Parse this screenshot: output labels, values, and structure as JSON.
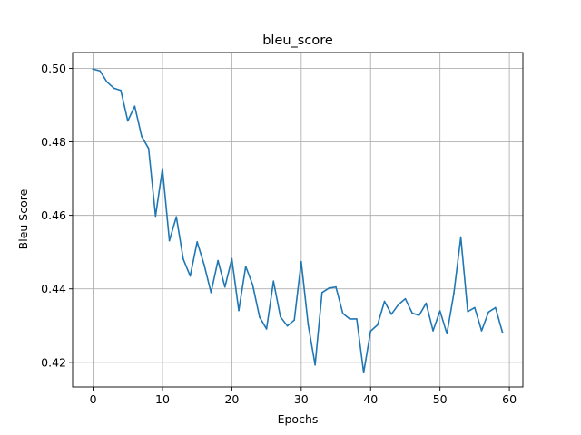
{
  "chart_data": {
    "type": "line",
    "title": "bleu_score",
    "xlabel": "Epochs",
    "ylabel": "Bleu Score",
    "xlim": [
      -2.95,
      61.95
    ],
    "ylim": [
      0.4133,
      0.5043
    ],
    "xticks": [
      0,
      10,
      20,
      30,
      40,
      50,
      60
    ],
    "xtick_labels": [
      "0",
      "10",
      "20",
      "30",
      "40",
      "50",
      "60"
    ],
    "yticks": [
      0.42,
      0.44,
      0.46,
      0.48,
      0.5
    ],
    "ytick_labels": [
      "0.42",
      "0.44",
      "0.46",
      "0.48",
      "0.50"
    ],
    "grid": true,
    "line_color": "#1f77b4",
    "series": [
      {
        "x": [
          0,
          1,
          2,
          3,
          4,
          5,
          6,
          7,
          8,
          9,
          10,
          11,
          12,
          13,
          14,
          15,
          16,
          17,
          18,
          19,
          20,
          21,
          22,
          23,
          24,
          25,
          26,
          27,
          28,
          29,
          30,
          31,
          32,
          33,
          34,
          35,
          36,
          37,
          38,
          39,
          40,
          41,
          42,
          43,
          44,
          45,
          46,
          47,
          48,
          49,
          50,
          51,
          52,
          53,
          54,
          55,
          56,
          57,
          58,
          59
        ],
        "y": [
          0.4998,
          0.4993,
          0.4963,
          0.4946,
          0.494,
          0.4857,
          0.4897,
          0.4815,
          0.4782,
          0.4598,
          0.4727,
          0.4531,
          0.4596,
          0.4481,
          0.4435,
          0.4528,
          0.4466,
          0.439,
          0.4477,
          0.4405,
          0.4482,
          0.4341,
          0.4461,
          0.4411,
          0.4323,
          0.4291,
          0.4421,
          0.4324,
          0.4299,
          0.4315,
          0.4474,
          0.4303,
          0.4193,
          0.439,
          0.4402,
          0.4405,
          0.4333,
          0.4318,
          0.4318,
          0.4172,
          0.4285,
          0.4302,
          0.4366,
          0.4331,
          0.4357,
          0.4373,
          0.4334,
          0.4328,
          0.4361,
          0.4286,
          0.434,
          0.4278,
          0.4388,
          0.4541,
          0.4338,
          0.4349,
          0.4286,
          0.4337,
          0.4349,
          0.4282
        ]
      }
    ]
  }
}
